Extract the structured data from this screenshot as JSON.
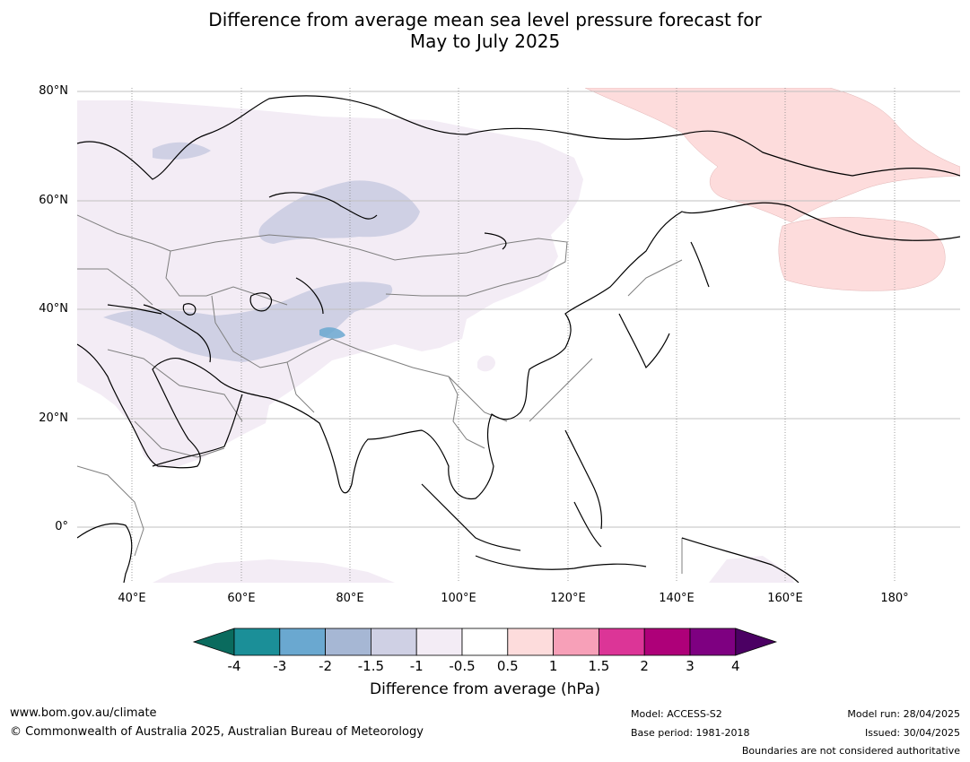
{
  "title": {
    "line1": "Difference from average mean sea level pressure forecast for",
    "line2": "May to July 2025"
  },
  "map": {
    "lat_labels": [
      "80°N",
      "60°N",
      "40°N",
      "20°N",
      "0°"
    ],
    "lon_labels": [
      "40°E",
      "60°E",
      "80°E",
      "100°E",
      "120°E",
      "140°E",
      "160°E",
      "180°"
    ],
    "extent": {
      "lon_min": 30,
      "lon_max": 192,
      "lat_min": -10,
      "lat_max": 81
    },
    "colors": {
      "land_outline": "#000000",
      "border": "#7f7f7f",
      "band_neg_0_5_to_1": "#f3ecf5",
      "band_neg_1_to_1_5": "#cfd0e4",
      "band_neg_3_to_2": "#6aa8d0",
      "band_0_5_to_1": "#fddcdc"
    }
  },
  "colorbar": {
    "label": "Difference from average (hPa)",
    "ticks": [
      "-4",
      "-3",
      "-2",
      "-1.5",
      "-1",
      "-0.5",
      "0.5",
      "1",
      "1.5",
      "2",
      "3",
      "4"
    ],
    "colors": [
      "#0a6b5e",
      "#1b8f98",
      "#6aa8d0",
      "#a6b7d4",
      "#cfd0e4",
      "#f3ecf5",
      "#ffffff",
      "#fddcdc",
      "#f7a0b8",
      "#dc3597",
      "#ae0079",
      "#7e0081",
      "#4b0063"
    ]
  },
  "footer": {
    "website": "www.bom.gov.au/climate",
    "copyright": "© Commonwealth of Australia 2025, Australian Bureau of Meteorology",
    "model": "Model: ACCESS-S2",
    "base_period": "Base period: 1981-2018",
    "model_run": "Model run: 28/04/2025",
    "issued": "Issued: 30/04/2025",
    "disclaimer": "Boundaries are not considered authoritative"
  }
}
